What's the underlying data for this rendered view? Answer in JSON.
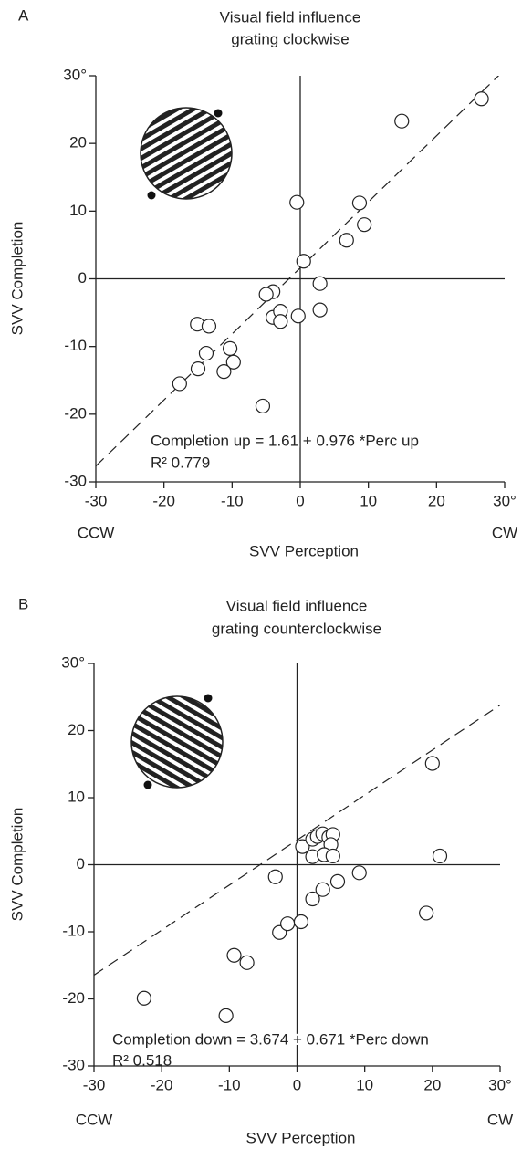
{
  "chart_data": [
    {
      "type": "scatter",
      "panel": "A",
      "title": [
        "Visual field influence",
        "grating clockwise"
      ],
      "x_label": "SVV Perception",
      "y_label": "SVV Completion",
      "x_left_label": "CCW",
      "x_right_label": "CW",
      "xlim": [
        -30,
        30
      ],
      "ylim": [
        -30,
        30
      ],
      "xticks": [
        -30,
        -20,
        -10,
        0,
        10,
        20,
        {
          "value": 30,
          "label": "30°"
        }
      ],
      "yticks": [
        -30,
        -20,
        -10,
        0,
        10,
        20,
        {
          "value": 30,
          "label": "30°"
        }
      ],
      "fit": {
        "intercept": 1.61,
        "slope": 0.976,
        "label": "Completion up = 1.61 + 0.976 *Perc up",
        "r2_label": "R² 0.779"
      },
      "x": [
        26.6,
        14.9,
        -0.5,
        8.7,
        9.4,
        6.8,
        0.5,
        2.9,
        2.9,
        -0.3,
        -4.0,
        -5.0,
        -4.0,
        -2.9,
        -2.9,
        -15.1,
        -13.4,
        -13.8,
        -15.0,
        -10.3,
        -9.8,
        -11.2,
        -5.5,
        -17.7
      ],
      "y": [
        26.6,
        23.3,
        11.3,
        11.2,
        8.0,
        5.7,
        2.6,
        -0.7,
        -4.6,
        -5.5,
        -1.9,
        -2.3,
        -5.7,
        -4.8,
        -6.3,
        -6.7,
        -7.0,
        -11.0,
        -13.3,
        -10.3,
        -12.3,
        -13.7,
        -18.8,
        -15.5
      ]
    },
    {
      "type": "scatter",
      "panel": "B",
      "title": [
        "Visual field influence",
        "grating counterclockwise"
      ],
      "x_label": "SVV Perception",
      "y_label": "SVV Completion",
      "x_left_label": "CCW",
      "x_right_label": "CW",
      "xlim": [
        -30,
        30
      ],
      "ylim": [
        -30,
        30
      ],
      "xticks": [
        -30,
        -20,
        -10,
        0,
        10,
        20,
        {
          "value": 30,
          "label": "30°"
        }
      ],
      "yticks": [
        -30,
        -20,
        -10,
        0,
        10,
        20,
        {
          "value": 30,
          "label": "30°"
        }
      ],
      "fit": {
        "intercept": 3.674,
        "slope": 0.671,
        "label": "Completion down = 3.674 + 0.671 *Perc down",
        "r2_label": "R² 0.518"
      },
      "x": [
        20.0,
        21.1,
        19.1,
        9.2,
        6.0,
        3.8,
        2.3,
        0.8,
        2.3,
        3.0,
        3.8,
        4.7,
        5.3,
        5.0,
        2.3,
        4.0,
        5.3,
        -3.2,
        -2.6,
        -1.4,
        0.6,
        -9.3,
        -7.4,
        -22.6,
        -10.5
      ],
      "y": [
        15.1,
        1.3,
        -7.2,
        -1.2,
        -2.5,
        -3.7,
        -5.1,
        2.7,
        3.8,
        4.2,
        4.6,
        4.1,
        4.5,
        3.0,
        1.2,
        1.5,
        1.3,
        -1.8,
        -10.1,
        -8.8,
        -8.5,
        -13.5,
        -14.6,
        -19.9,
        -22.5
      ]
    }
  ]
}
